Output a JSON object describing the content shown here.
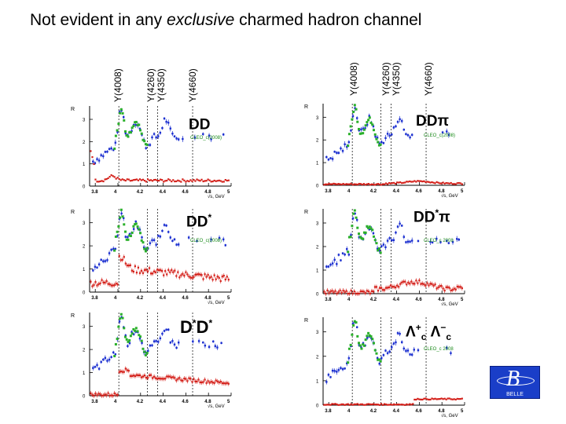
{
  "title": {
    "pre": "Not evident in any ",
    "em": "exclusive",
    "post": " charmed hadron channel"
  },
  "resonances_left": [
    "Y(4008)",
    "Y(4260)",
    "Y(4350)",
    "Y(4660)"
  ],
  "resonances_right": [
    "Y(4008)",
    "Y(4260)",
    "Y(4350)",
    "Y(4660)"
  ],
  "panels": [
    {
      "main": "DD",
      "sup": "",
      "sub1": "",
      "main2": "",
      "sup2": "",
      "sub2": "",
      "legend": "CLEO_c(2008)"
    },
    {
      "main": "DDπ",
      "sup": "",
      "sub1": "",
      "main2": "",
      "sup2": "",
      "sub2": "",
      "legend": "CLEO_c(2008)"
    },
    {
      "main": "DD",
      "sup": "*",
      "sub1": "",
      "main2": "",
      "sup2": "",
      "sub2": "",
      "legend": "CLEO_c(2008)"
    },
    {
      "main": "DD",
      "sup": "*",
      "sub1": "",
      "main2": "π",
      "sup2": "",
      "sub2": "",
      "legend": "CLEO_c 2008"
    },
    {
      "main": "D",
      "sup": "*",
      "sub1": "",
      "main2": "D",
      "sup2": "*",
      "sub2": "",
      "legend": ""
    },
    {
      "main": "Λ",
      "sup": "+",
      "sub1": "c",
      "main2": " Λ",
      "sup2": "−",
      "sub2": "c",
      "legend": "CLEO_c 2008"
    }
  ],
  "axes": {
    "ylabel": "R",
    "xlabel": "√s, GeV",
    "xticks_left": [
      "3.8",
      "4",
      "4.2",
      "4.4",
      "4.6",
      "4.8",
      "5"
    ],
    "xticks_right": [
      "3.8",
      "4",
      "4.2",
      "4.4",
      "4.6",
      "4.8",
      "5"
    ],
    "yticks": [
      "0",
      "1",
      "2",
      "3"
    ]
  },
  "logo": {
    "text": "BELLE"
  },
  "colors": {
    "belle": "#1b2fd0",
    "exclusive": "#d4201a",
    "cleo": "#2ab02a",
    "logo_bg": "#1a3ec8"
  }
}
